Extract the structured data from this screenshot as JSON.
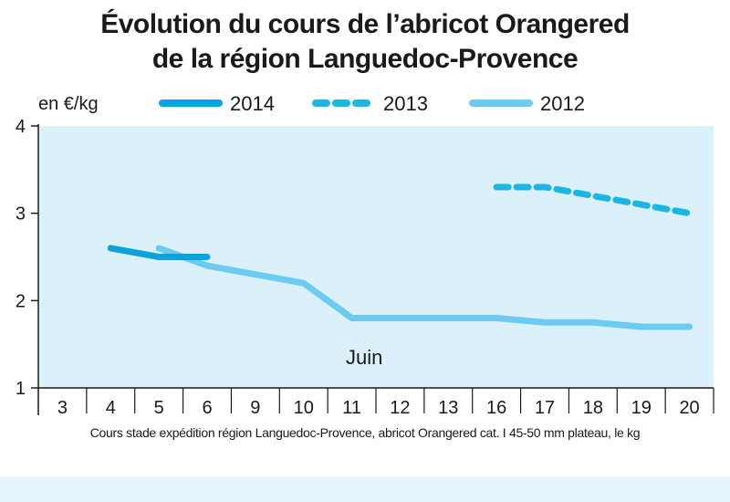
{
  "chart_data": {
    "type": "line",
    "title": "Évolution du cours de l’abricot Orangered",
    "subtitle": "de la région Languedoc-Provence",
    "ylabel": "en €/kg",
    "xlabel": "",
    "ylim": [
      1,
      4
    ],
    "yticks": [
      "1",
      "2",
      "3",
      "4"
    ],
    "categories": [
      "3",
      "4",
      "5",
      "6",
      "9",
      "10",
      "11",
      "12",
      "13",
      "16",
      "17",
      "18",
      "19",
      "20"
    ],
    "annotation": "Juin",
    "grid": false,
    "legend_position": "top",
    "series": [
      {
        "name": "2014",
        "style": "solid-dark",
        "color": "#0aa3dc",
        "points": [
          {
            "x": "4",
            "y": 2.6
          },
          {
            "x": "5",
            "y": 2.5
          },
          {
            "x": "6",
            "y": 2.5
          }
        ]
      },
      {
        "name": "2013",
        "style": "dashed",
        "color": "#1ab6e6",
        "points": [
          {
            "x": "16",
            "y": 3.3
          },
          {
            "x": "17",
            "y": 3.3
          },
          {
            "x": "18",
            "y": 3.2
          },
          {
            "x": "19",
            "y": 3.1
          },
          {
            "x": "20",
            "y": 3.0
          }
        ]
      },
      {
        "name": "2012",
        "style": "solid-light",
        "color": "#6ccbf0",
        "points": [
          {
            "x": "5",
            "y": 2.6
          },
          {
            "x": "6",
            "y": 2.4
          },
          {
            "x": "9",
            "y": 2.3
          },
          {
            "x": "10",
            "y": 2.2
          },
          {
            "x": "11",
            "y": 1.8
          },
          {
            "x": "12",
            "y": 1.8
          },
          {
            "x": "13",
            "y": 1.8
          },
          {
            "x": "16",
            "y": 1.8
          },
          {
            "x": "17",
            "y": 1.75
          },
          {
            "x": "18",
            "y": 1.75
          },
          {
            "x": "19",
            "y": 1.7
          },
          {
            "x": "20",
            "y": 1.7
          }
        ]
      }
    ],
    "plot_background": "#dcf0fa",
    "footnote": "Cours stade expédition région Languedoc-Provence, abricot Orangered cat. I 45-50 mm plateau, le kg"
  }
}
